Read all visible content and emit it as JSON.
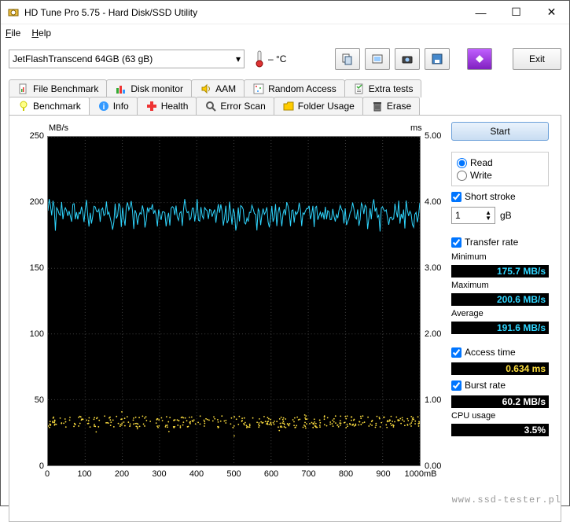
{
  "window": {
    "title": "HD Tune Pro 5.75 - Hard Disk/SSD Utility"
  },
  "menu": {
    "file": "File",
    "help": "Help"
  },
  "toolbar": {
    "drive": "JetFlashTranscend 64GB (63 gB)",
    "temp": "–  °C",
    "exit": "Exit"
  },
  "tabs_top": [
    {
      "label": "File Benchmark"
    },
    {
      "label": "Disk monitor"
    },
    {
      "label": "AAM"
    },
    {
      "label": "Random Access"
    },
    {
      "label": "Extra tests"
    }
  ],
  "tabs_bottom": [
    {
      "label": "Benchmark"
    },
    {
      "label": "Info"
    },
    {
      "label": "Health"
    },
    {
      "label": "Error Scan"
    },
    {
      "label": "Folder Usage"
    },
    {
      "label": "Erase"
    }
  ],
  "chart": {
    "y_unit": "MB/s",
    "y2_unit": "ms",
    "x_unit": "mB",
    "y_ticks": [
      "0",
      "50",
      "100",
      "150",
      "200",
      "250"
    ],
    "y2_ticks": [
      "0.00",
      "1.00",
      "2.00",
      "3.00",
      "4.00",
      "5.00"
    ],
    "x_ticks": [
      "0",
      "100",
      "200",
      "300",
      "400",
      "500",
      "600",
      "700",
      "800",
      "900",
      "1000"
    ],
    "transfer_color": "#2fd6ff",
    "access_color": "#ffe040",
    "transfer_mean": 191.6,
    "transfer_min": 175.7,
    "transfer_max": 200.6,
    "access_mean": 0.634,
    "y_max": 250,
    "y2_max": 5.0
  },
  "side": {
    "start": "Start",
    "read": "Read",
    "write": "Write",
    "short_stroke": "Short stroke",
    "short_val": "1",
    "short_unit": "gB",
    "transfer_rate": "Transfer rate",
    "minimum": "Minimum",
    "min_val": "175.7 MB/s",
    "maximum": "Maximum",
    "max_val": "200.6 MB/s",
    "average": "Average",
    "avg_val": "191.6 MB/s",
    "access_time": "Access time",
    "access_val": "0.634 ms",
    "burst_rate": "Burst rate",
    "burst_val": "60.2 MB/s",
    "cpu_usage": "CPU usage",
    "cpu_val": "3.5%"
  },
  "watermark": "www.ssd-tester.pl"
}
